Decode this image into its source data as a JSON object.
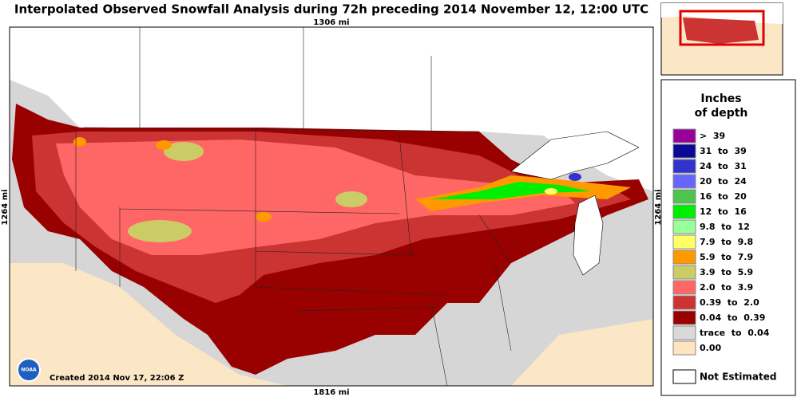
{
  "header": {
    "title": "Interpolated Observed Snowfall Analysis during 72h preceding 2014 November 12, 12:00 UTC"
  },
  "map": {
    "top_scale": "1306 mi",
    "bottom_scale": "1816 mi",
    "left_scale": "1264 mi",
    "right_scale": "1264 mi",
    "created": "Created 2014 Nov 17, 22:06 Z",
    "logo": "NOAA"
  },
  "legend": {
    "title_line1": "Inches",
    "title_line2": "of depth",
    "items": [
      {
        "label": ">  39",
        "color": "#990099"
      },
      {
        "label": "31  to  39",
        "color": "#0a0a96"
      },
      {
        "label": "24  to  31",
        "color": "#3333cc"
      },
      {
        "label": "20  to  24",
        "color": "#6666ff"
      },
      {
        "label": "16  to  20",
        "color": "#4dc44d"
      },
      {
        "label": "12  to  16",
        "color": "#00ee00"
      },
      {
        "label": "9.8  to  12",
        "color": "#99ff99"
      },
      {
        "label": "7.9  to  9.8",
        "color": "#ffff66"
      },
      {
        "label": "5.9  to  7.9",
        "color": "#ff9900"
      },
      {
        "label": "3.9  to  5.9",
        "color": "#cccc66"
      },
      {
        "label": "2.0  to  3.9",
        "color": "#ff6666"
      },
      {
        "label": "0.39  to  2.0",
        "color": "#cc3333"
      },
      {
        "label": "0.04  to  0.39",
        "color": "#990000"
      },
      {
        "label": "trace  to  0.04",
        "color": "#d9d9d9"
      },
      {
        "label": "0.00",
        "color": "#ffe4c0"
      }
    ],
    "not_estimated": {
      "label": "Not Estimated",
      "color": "#ffffff"
    }
  }
}
